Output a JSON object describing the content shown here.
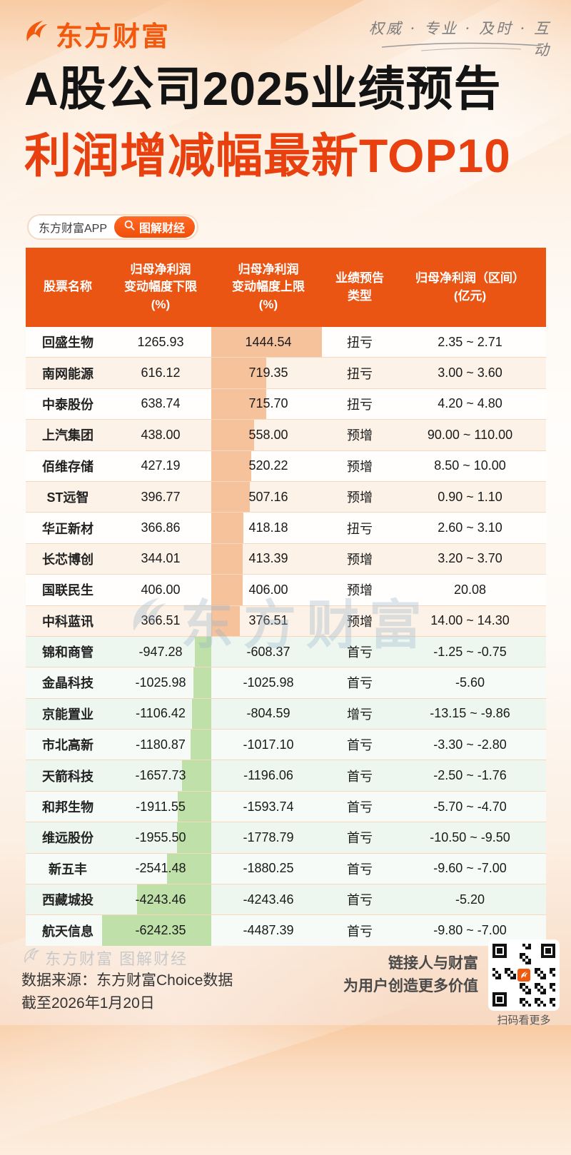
{
  "colors": {
    "brand_orange": "#F1590F",
    "table_header_bg": "#EA5514",
    "title_red": "#E8400E",
    "positive_bar": "#F5C29C",
    "negative_bar": "#BFE0A9",
    "row_peach_tint": "#FCF2E8",
    "row_mint_tint": "#EDF7F0"
  },
  "header": {
    "logo_text": "东方财富",
    "tagline": "权威 · 专业 · 及时 · 互动"
  },
  "titles": {
    "line1": "A股公司2025业绩预告",
    "line2": "利润增减幅最新TOP10"
  },
  "pill": {
    "app_label": "东方财富APP",
    "button_label": "图解财经"
  },
  "table": {
    "columns": [
      "股票名称",
      "归母净利润\n变动幅度下限\n(%)",
      "归母净利润\n变动幅度上限\n(%)",
      "业绩预告\n类型",
      "归母净利润（区间）\n(亿元)"
    ]
  },
  "chart_data": {
    "type": "bar",
    "bar_orientation": "horizontal",
    "title": "A股公司2025业绩预告 利润增减幅最新TOP10",
    "categories": [
      "回盛生物",
      "南网能源",
      "中泰股份",
      "上汽集团",
      "佰维存储",
      "ST远智",
      "华正新材",
      "长芯博创",
      "国联民生",
      "中科蓝讯",
      "锦和商管",
      "金晶科技",
      "京能置业",
      "市北高新",
      "天箭科技",
      "和邦生物",
      "维远股份",
      "新五丰",
      "西藏城投",
      "航天信息"
    ],
    "series": [
      {
        "name": "归母净利润变动幅度下限(%)",
        "values": [
          1265.93,
          616.12,
          638.74,
          438.0,
          427.19,
          396.77,
          366.86,
          344.01,
          406.0,
          366.51,
          -947.28,
          -1025.98,
          -1106.42,
          -1180.87,
          -1657.73,
          -1911.55,
          -1955.5,
          -2541.48,
          -4243.46,
          -6242.35
        ]
      },
      {
        "name": "归母净利润变动幅度上限(%)",
        "values": [
          1444.54,
          719.35,
          715.7,
          558.0,
          520.22,
          507.16,
          418.18,
          413.39,
          406.0,
          376.51,
          -608.37,
          -1025.98,
          -804.59,
          -1017.1,
          -1196.06,
          -1593.74,
          -1778.79,
          -1880.25,
          -4243.46,
          -4487.39
        ]
      }
    ],
    "forecast_types": [
      "扭亏",
      "扭亏",
      "扭亏",
      "预增",
      "预增",
      "预增",
      "扭亏",
      "预增",
      "预增",
      "预增",
      "首亏",
      "首亏",
      "增亏",
      "首亏",
      "首亏",
      "首亏",
      "首亏",
      "首亏",
      "首亏",
      "首亏"
    ],
    "profit_range_yi_yuan": [
      "2.35 ~ 2.71",
      "3.00 ~ 3.60",
      "4.20 ~ 4.80",
      "90.00 ~ 110.00",
      "8.50 ~ 10.00",
      "0.90 ~ 1.10",
      "2.60 ~ 3.10",
      "3.20 ~ 3.70",
      "20.08",
      "14.00 ~ 14.30",
      "-1.25 ~ -0.75",
      "-5.60",
      "-13.15 ~ -9.86",
      "-3.30 ~ -2.80",
      "-2.50 ~ -1.76",
      "-5.70 ~ -4.70",
      "-10.50 ~ -9.50",
      "-9.60 ~ -7.00",
      "-5.20",
      "-9.80 ~ -7.00"
    ],
    "legend_position": "none",
    "grid": false
  },
  "watermark": {
    "text": "东方财富"
  },
  "footer": {
    "brand": "东方财富 图解财经",
    "source_lines": "数据来源：东方财富Choice数据\n截至2026年1月20日",
    "slogan_lines": "链接人与财富\n为用户创造更多价值",
    "qr_caption": "扫码看更多"
  }
}
